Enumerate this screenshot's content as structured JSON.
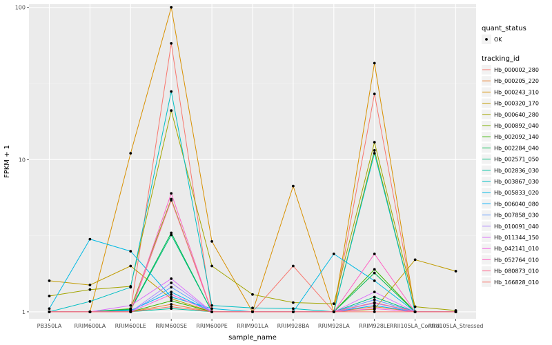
{
  "chart_data": {
    "type": "line",
    "xlabel": "sample_name",
    "ylabel": "FPKM + 1",
    "y_scale": "log10",
    "ylim": [
      0.9,
      105
    ],
    "y_ticks": [
      1,
      10,
      100
    ],
    "y_tick_labels": [
      "1",
      "10",
      "100"
    ],
    "grid": true,
    "legend_position": "right",
    "panel_background": "#ebebeb",
    "categories": [
      "PB350LA",
      "RRIM600LA",
      "RRIM600LE",
      "RRIM600SE",
      "RRIM600PE",
      "RRIM901LA",
      "RRIM928BA",
      "RRIM928LA",
      "RRIM928LE",
      "RRII105LA_Control",
      "RRII105LA_Stressed"
    ],
    "point_legend": {
      "title": "quant_status",
      "items": [
        {
          "label": "OK"
        }
      ]
    },
    "series_legend_title": "tracking_id",
    "series": [
      {
        "name": "Hb_000002_280",
        "color": "#F8766D",
        "values": [
          1.0,
          1.0,
          1.02,
          58,
          1.0,
          1.0,
          2.0,
          1.0,
          27,
          1.0,
          1.0
        ]
      },
      {
        "name": "Hb_000205_220",
        "color": "#EA8331",
        "values": [
          1.0,
          1.0,
          1.0,
          1.12,
          1.0,
          1.0,
          1.0,
          1.0,
          1.08,
          1.0,
          1.0
        ]
      },
      {
        "name": "Hb_000243_310",
        "color": "#D89000",
        "values": [
          1.0,
          1.0,
          11,
          100,
          2.9,
          1.0,
          6.7,
          1.0,
          43,
          1.0,
          1.0
        ]
      },
      {
        "name": "Hb_000320_170",
        "color": "#C09B00",
        "values": [
          1.6,
          1.5,
          2.0,
          1.22,
          1.0,
          1.0,
          1.0,
          1.0,
          1.04,
          2.2,
          1.85
        ]
      },
      {
        "name": "Hb_000640_280",
        "color": "#A3A500",
        "values": [
          1.27,
          1.4,
          1.47,
          21,
          2.0,
          1.3,
          1.15,
          1.13,
          13,
          1.08,
          1.02
        ]
      },
      {
        "name": "Hb_000892_040",
        "color": "#7CAE00",
        "values": [
          1.0,
          1.0,
          1.05,
          5.5,
          1.0,
          1.0,
          1.0,
          1.0,
          11.5,
          1.0,
          1.0
        ]
      },
      {
        "name": "Hb_002092_140",
        "color": "#39B600",
        "values": [
          1.0,
          1.0,
          1.0,
          1.18,
          1.0,
          1.0,
          1.0,
          1.0,
          1.9,
          1.0,
          1.0
        ]
      },
      {
        "name": "Hb_002284_040",
        "color": "#00BB4E",
        "values": [
          1.0,
          1.0,
          1.04,
          3.3,
          1.0,
          1.0,
          1.0,
          1.0,
          1.8,
          1.0,
          1.0
        ]
      },
      {
        "name": "Hb_002571_050",
        "color": "#00BF7D",
        "values": [
          1.0,
          1.0,
          1.03,
          3.2,
          1.0,
          1.0,
          1.0,
          1.0,
          1.25,
          1.0,
          1.0
        ]
      },
      {
        "name": "Hb_002836_030",
        "color": "#00C1A3",
        "values": [
          1.0,
          1.0,
          1.0,
          1.05,
          1.0,
          1.0,
          1.0,
          1.0,
          1.15,
          1.0,
          1.0
        ]
      },
      {
        "name": "Hb_003867_030",
        "color": "#00BFC4",
        "values": [
          1.0,
          1.17,
          1.45,
          28,
          1.1,
          1.06,
          1.05,
          1.0,
          11,
          1.0,
          1.0
        ]
      },
      {
        "name": "Hb_005833_020",
        "color": "#00B9E3",
        "values": [
          1.05,
          3.0,
          2.5,
          1.25,
          1.05,
          1.0,
          1.0,
          2.4,
          1.6,
          1.0,
          1.0
        ]
      },
      {
        "name": "Hb_006040_080",
        "color": "#00ADFA",
        "values": [
          1.0,
          1.0,
          1.02,
          1.35,
          1.0,
          1.0,
          1.0,
          1.0,
          1.1,
          1.0,
          1.0
        ]
      },
      {
        "name": "Hb_007858_030",
        "color": "#619CFF",
        "values": [
          1.0,
          1.0,
          1.0,
          1.45,
          1.0,
          1.0,
          1.0,
          1.0,
          1.2,
          1.0,
          1.0
        ]
      },
      {
        "name": "Hb_010091_040",
        "color": "#AE87FF",
        "values": [
          1.0,
          1.0,
          1.0,
          1.55,
          1.0,
          1.0,
          1.0,
          1.0,
          1.14,
          1.0,
          1.0
        ]
      },
      {
        "name": "Hb_011344_150",
        "color": "#DB72FB",
        "values": [
          1.0,
          1.0,
          1.1,
          1.65,
          1.0,
          1.0,
          1.0,
          1.0,
          1.35,
          1.0,
          1.0
        ]
      },
      {
        "name": "Hb_042141_010",
        "color": "#F564E3",
        "values": [
          1.0,
          1.0,
          1.0,
          1.3,
          1.0,
          1.0,
          1.0,
          1.0,
          1.05,
          1.0,
          1.0
        ]
      },
      {
        "name": "Hb_052764_010",
        "color": "#FF61C3",
        "values": [
          1.0,
          1.0,
          1.0,
          6.0,
          1.0,
          1.0,
          1.0,
          1.0,
          2.4,
          1.0,
          1.0
        ]
      },
      {
        "name": "Hb_080873_010",
        "color": "#FF6C91",
        "values": [
          1.0,
          1.0,
          1.0,
          5.4,
          1.0,
          1.0,
          1.0,
          1.0,
          1.15,
          1.0,
          1.0
        ]
      },
      {
        "name": "Hb_166828_010",
        "color": "#F8766D",
        "values": [
          1.0,
          1.0,
          1.0,
          1.08,
          1.0,
          1.0,
          1.0,
          1.0,
          1.0,
          1.0,
          1.0
        ]
      }
    ]
  }
}
